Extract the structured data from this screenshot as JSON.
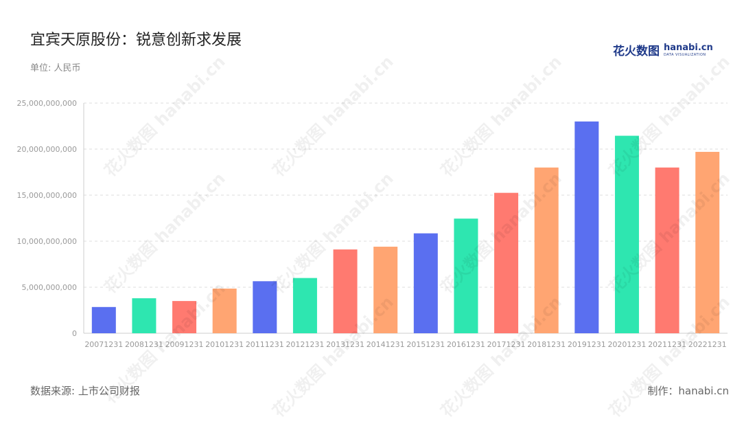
{
  "header": {
    "title": "宜宾天原股份：锐意创新求发展",
    "unit": "单位: 人民币"
  },
  "logo": {
    "cn": "花火数图",
    "en": "hanabi.cn",
    "sub": "DATA VISUALIZATION"
  },
  "footer": {
    "source": "数据来源: 上市公司财报",
    "credit": "制作：hanabi.cn"
  },
  "watermark": "花火数图 hanabi.cn",
  "colors": [
    "#5a6ff0",
    "#2ee6b0",
    "#ff7a70",
    "#ffa572"
  ],
  "chart_data": {
    "type": "bar",
    "categories": [
      "20071231",
      "20081231",
      "20091231",
      "20101231",
      "20111231",
      "20121231",
      "20131231",
      "20141231",
      "20151231",
      "20161231",
      "20171231",
      "20181231",
      "20191231",
      "20201231",
      "20211231",
      "20221231"
    ],
    "values": [
      2850000000,
      3800000000,
      3500000000,
      4850000000,
      5650000000,
      6000000000,
      9100000000,
      9400000000,
      10850000000,
      12450000000,
      15250000000,
      18000000000,
      23000000000,
      21450000000,
      18000000000,
      19700000000
    ],
    "ylim": [
      0,
      25000000000
    ],
    "yticks": [
      "0",
      "5,000,000,000",
      "10,000,000,000",
      "15,000,000,000",
      "20,000,000,000",
      "25,000,000,000"
    ],
    "ytick_values": [
      0,
      5000000000,
      10000000000,
      15000000000,
      20000000000,
      25000000000
    ],
    "grid": true
  }
}
